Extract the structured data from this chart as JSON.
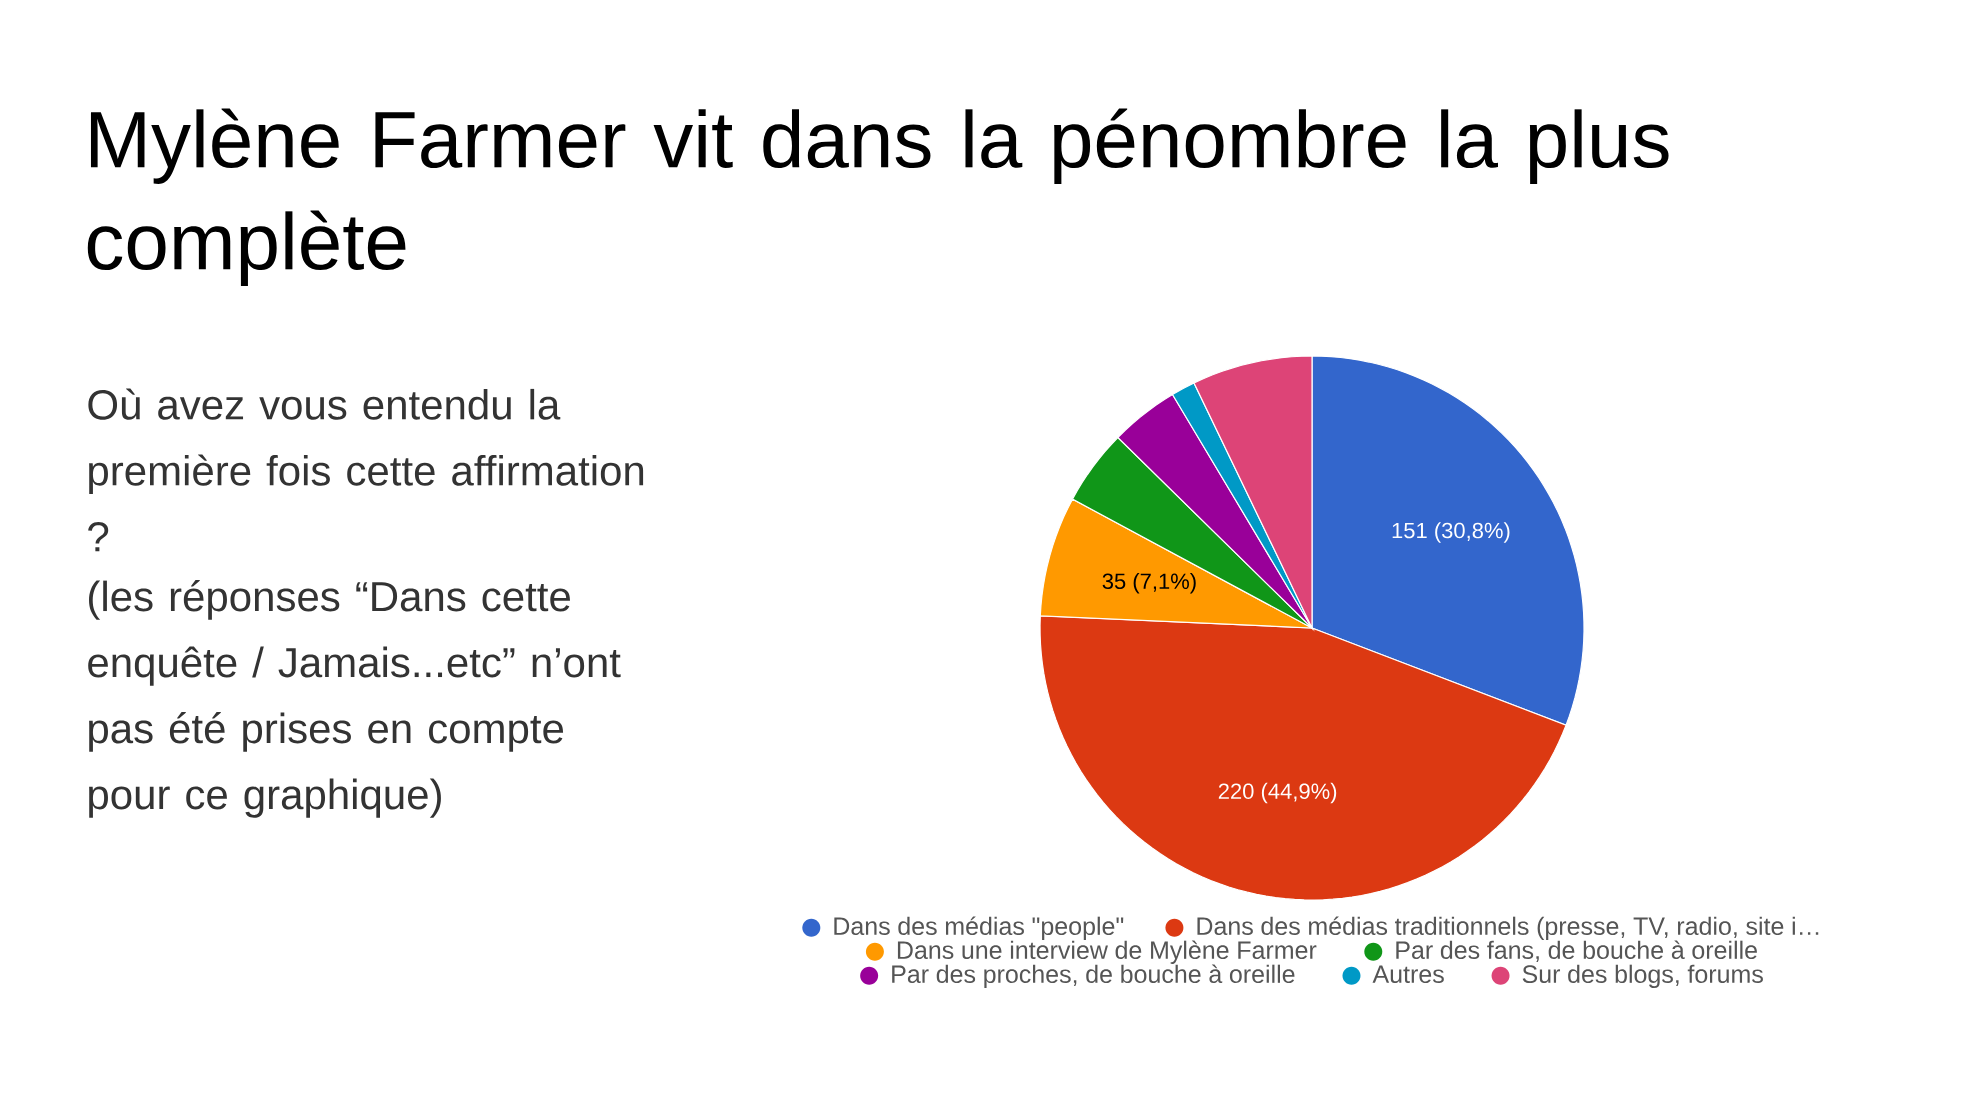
{
  "chart_data": {
    "type": "pie",
    "title": "Mylène Farmer vit dans la pénombre la plus complète",
    "subtitle": "Où avez vous entendu la première fois cette affirmation ?",
    "annotations": [
      "(les réponses “Dans cette enquête / Jamais...etc” n’ont pas été prises en compte pour ce graphique)"
    ],
    "categories": [
      "Dans des médias \"people\"",
      "Dans des médias traditionnels (presse, TV, radio, site i…",
      "Dans une interview de Mylène Farmer",
      "Par des fans, de bouche à oreille",
      "Par des proches, de bouche à oreille",
      "Autres",
      "Sur des blogs, forums"
    ],
    "values": [
      151,
      220,
      35,
      22,
      20,
      7,
      35
    ],
    "value_labels": [
      "151 (30,8%)",
      "220 (44,9%)",
      "35 (7,1%)",
      null,
      null,
      null,
      null
    ],
    "colors": [
      "#3366cc",
      "#dc3912",
      "#ff9900",
      "#109618",
      "#990099",
      "#0099c6",
      "#dd4477"
    ],
    "legend": "bottom"
  }
}
